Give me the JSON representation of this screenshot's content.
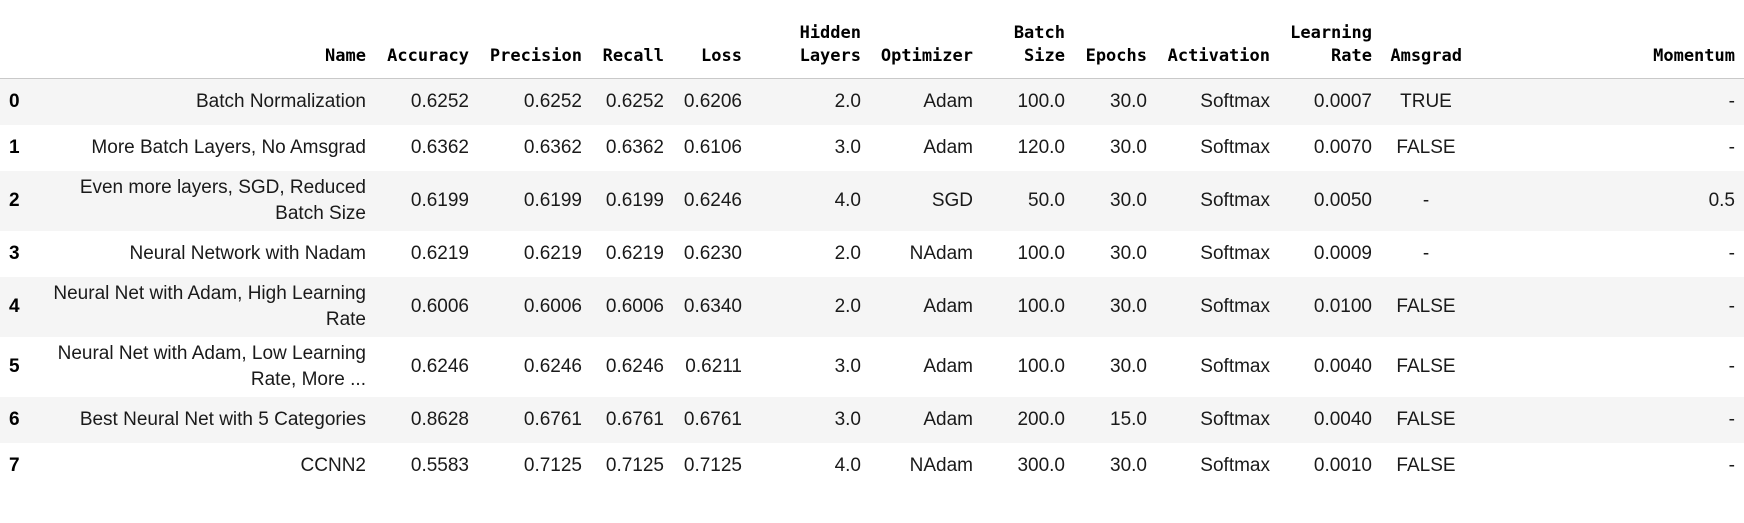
{
  "columns": [
    {
      "label": ""
    },
    {
      "label": "Name"
    },
    {
      "label": "Accuracy"
    },
    {
      "label": "Precision"
    },
    {
      "label": "Recall"
    },
    {
      "label": "Loss"
    },
    {
      "label": "Hidden Layers"
    },
    {
      "label": "Optimizer"
    },
    {
      "label": "Batch Size"
    },
    {
      "label": "Epochs"
    },
    {
      "label": "Activation"
    },
    {
      "label": "Learning Rate"
    },
    {
      "label": "Amsgrad"
    },
    {
      "label": "Momentum"
    }
  ],
  "rows": [
    {
      "index": "0",
      "name": "Batch Normalization",
      "accuracy": "0.6252",
      "precision": "0.6252",
      "recall": "0.6252",
      "loss": "0.6206",
      "hidden_layers": "2.0",
      "optimizer": "Adam",
      "batch_size": "100.0",
      "epochs": "30.0",
      "activation": "Softmax",
      "learning_rate": "0.0007",
      "amsgrad": "TRUE",
      "momentum": "-"
    },
    {
      "index": "1",
      "name": "More Batch Layers, No Amsgrad",
      "accuracy": "0.6362",
      "precision": "0.6362",
      "recall": "0.6362",
      "loss": "0.6106",
      "hidden_layers": "3.0",
      "optimizer": "Adam",
      "batch_size": "120.0",
      "epochs": "30.0",
      "activation": "Softmax",
      "learning_rate": "0.0070",
      "amsgrad": "FALSE",
      "momentum": "-"
    },
    {
      "index": "2",
      "name": "Even more layers, SGD, Reduced Batch Size",
      "accuracy": "0.6199",
      "precision": "0.6199",
      "recall": "0.6199",
      "loss": "0.6246",
      "hidden_layers": "4.0",
      "optimizer": "SGD",
      "batch_size": "50.0",
      "epochs": "30.0",
      "activation": "Softmax",
      "learning_rate": "0.0050",
      "amsgrad": "-",
      "momentum": "0.5"
    },
    {
      "index": "3",
      "name": "Neural Network with Nadam",
      "accuracy": "0.6219",
      "precision": "0.6219",
      "recall": "0.6219",
      "loss": "0.6230",
      "hidden_layers": "2.0",
      "optimizer": "NAdam",
      "batch_size": "100.0",
      "epochs": "30.0",
      "activation": "Softmax",
      "learning_rate": "0.0009",
      "amsgrad": "-",
      "momentum": "-"
    },
    {
      "index": "4",
      "name": "Neural Net with Adam, High Learning Rate",
      "accuracy": "0.6006",
      "precision": "0.6006",
      "recall": "0.6006",
      "loss": "0.6340",
      "hidden_layers": "2.0",
      "optimizer": "Adam",
      "batch_size": "100.0",
      "epochs": "30.0",
      "activation": "Softmax",
      "learning_rate": "0.0100",
      "amsgrad": "FALSE",
      "momentum": "-"
    },
    {
      "index": "5",
      "name": "Neural Net with Adam, Low Learning Rate, More ...",
      "accuracy": "0.6246",
      "precision": "0.6246",
      "recall": "0.6246",
      "loss": "0.6211",
      "hidden_layers": "3.0",
      "optimizer": "Adam",
      "batch_size": "100.0",
      "epochs": "30.0",
      "activation": "Softmax",
      "learning_rate": "0.0040",
      "amsgrad": "FALSE",
      "momentum": "-"
    },
    {
      "index": "6",
      "name": "Best Neural Net with 5 Categories",
      "accuracy": "0.8628",
      "precision": "0.6761",
      "recall": "0.6761",
      "loss": "0.6761",
      "hidden_layers": "3.0",
      "optimizer": "Adam",
      "batch_size": "200.0",
      "epochs": "15.0",
      "activation": "Softmax",
      "learning_rate": "0.0040",
      "amsgrad": "FALSE",
      "momentum": "-"
    },
    {
      "index": "7",
      "name": "CCNN2",
      "accuracy": "0.5583",
      "precision": "0.7125",
      "recall": "0.7125",
      "loss": "0.7125",
      "hidden_layers": "4.0",
      "optimizer": "NAdam",
      "batch_size": "300.0",
      "epochs": "30.0",
      "activation": "Softmax",
      "learning_rate": "0.0010",
      "amsgrad": "FALSE",
      "momentum": "-"
    }
  ]
}
